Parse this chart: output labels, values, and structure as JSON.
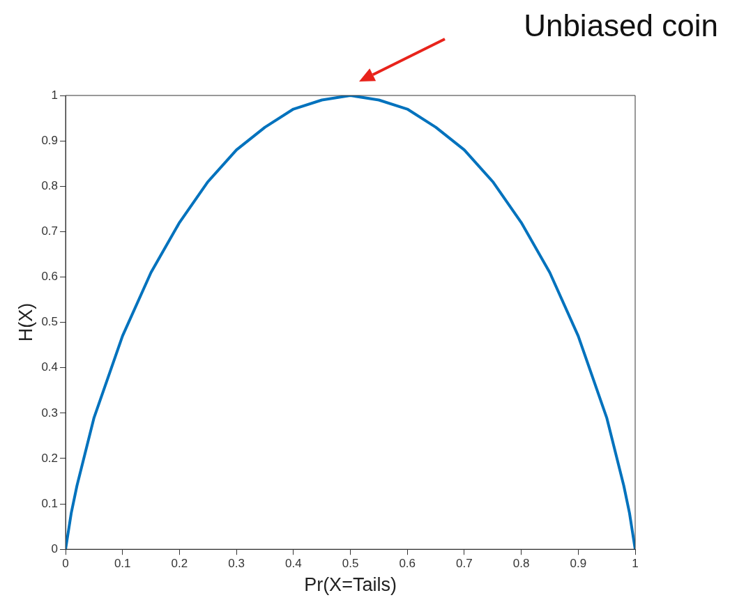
{
  "chart_data": {
    "type": "line",
    "xlabel": "Pr(X=Tails)",
    "ylabel": "H(X)",
    "x": [
      0,
      0.01,
      0.02,
      0.05,
      0.1,
      0.15,
      0.2,
      0.25,
      0.3,
      0.35,
      0.4,
      0.45,
      0.5,
      0.55,
      0.6,
      0.65,
      0.7,
      0.75,
      0.8,
      0.85,
      0.9,
      0.95,
      0.98,
      0.99,
      1
    ],
    "series": [
      {
        "color": "#0072bd",
        "values": [
          0,
          0.08,
          0.14,
          0.29,
          0.47,
          0.61,
          0.72,
          0.81,
          0.88,
          0.93,
          0.97,
          0.99,
          1,
          0.99,
          0.97,
          0.93,
          0.88,
          0.81,
          0.72,
          0.61,
          0.47,
          0.29,
          0.14,
          0.08,
          0
        ]
      }
    ],
    "xlim": [
      0,
      1
    ],
    "ylim": [
      0,
      1
    ],
    "xticks": [
      0,
      0.1,
      0.2,
      0.3,
      0.4,
      0.5,
      0.6,
      0.7,
      0.8,
      0.9,
      1
    ],
    "yticks": [
      0,
      0.1,
      0.2,
      0.3,
      0.4,
      0.5,
      0.6,
      0.7,
      0.8,
      0.9,
      1
    ],
    "grid": false,
    "legend": false,
    "marker": "none",
    "line_style": "solid",
    "annotations": [
      "Unbiased coin"
    ]
  }
}
